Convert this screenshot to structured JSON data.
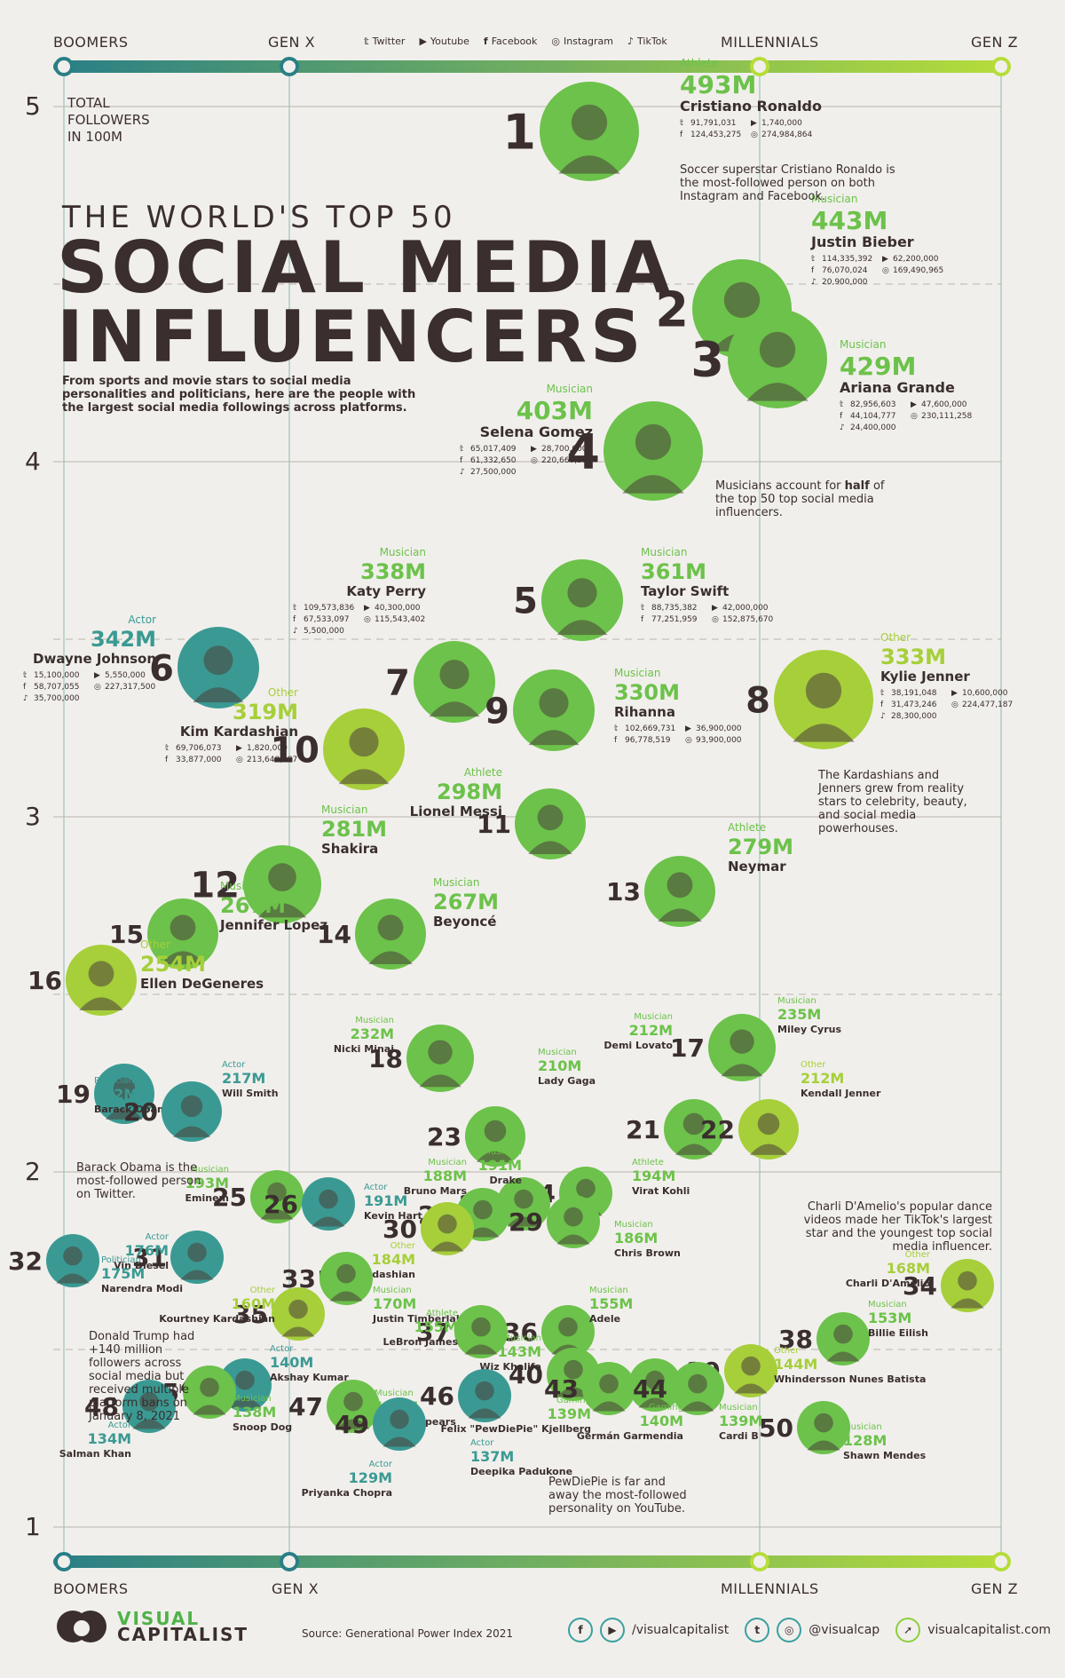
{
  "header": {
    "generations_top": [
      "BOOMERS",
      "GEN X",
      "MILLENNIALS",
      "GEN Z"
    ],
    "generations_bottom": [
      "BOOMERS",
      "GEN X",
      "MILLENNIALS",
      "GEN Z"
    ],
    "platform_legend": [
      {
        "icon": "twitter-icon",
        "label": "Twitter"
      },
      {
        "icon": "youtube-icon",
        "label": "Youtube"
      },
      {
        "icon": "facebook-icon",
        "label": "Facebook"
      },
      {
        "icon": "instagram-icon",
        "label": "Instagram"
      },
      {
        "icon": "tiktok-icon",
        "label": "TikTok"
      }
    ]
  },
  "title": {
    "line1": "THE WORLD'S TOP 50",
    "line2": "SOCIAL MEDIA",
    "line3": "INFLUENCERS",
    "subtitle": "From sports and movie stars to social media personalities and politicians, here are the people with the largest social media followings across platforms."
  },
  "axis": {
    "label_lines": [
      "TOTAL",
      "FOLLOWERS",
      "IN 100M"
    ],
    "ticks": [
      "5",
      "4",
      "3",
      "2",
      "1"
    ]
  },
  "notes": {
    "musicians_pre": "Musicians account for",
    "musicians_bold": "half",
    "musicians_post": "of the top 50 top social media influencers.",
    "kardashians": "The Kardashians and Jenners grew from reality stars to celebrity, beauty, and social media powerhouses.",
    "obama": "Barack Obama is the most-followed person on Twitter.",
    "charli": "Charli D'Amelio's popular dance videos made her TikTok's largest star and the youngest top social media influencer.",
    "trump": "Donald Trump had +140 million followers across social media but received multiple platform bans on January 8, 2021",
    "pewdiepie": "PewDiePie is far and away the most-followed personality on YouTube.",
    "ronaldo": "Soccer superstar Cristiano Ronaldo is the most-followed person on both Instagram and Facebook."
  },
  "colors": {
    "Athlete": "#6cc24a",
    "Musician": "#6cc24a",
    "Other": "#a6cf3a",
    "Actor": "#3a9a93",
    "Politician": "#3a9a93",
    "Gaming": "#6cc24a",
    "text": "#3a2e2e",
    "axis_gradient_start": "#2a7f86",
    "axis_gradient_end": "#b6dd3a"
  },
  "chart_data": {
    "type": "scatter",
    "ylabel": "TOTAL FOLLOWERS IN 100M",
    "ylim": [
      1,
      5
    ],
    "xlim": [
      "BOOMERS",
      "GEN Z"
    ],
    "yticks": [
      5,
      4,
      3,
      2,
      1
    ],
    "influencers": [
      {
        "rank": 1,
        "name": "Cristiano Ronaldo",
        "total": "493M",
        "value": 4.93,
        "category": "Athlete",
        "twitter": "91,791,031",
        "youtube": "1,740,000",
        "facebook": "124,453,275",
        "instagram": "274,984,864"
      },
      {
        "rank": 2,
        "name": "Justin Bieber",
        "total": "443M",
        "value": 4.43,
        "category": "Musician",
        "twitter": "114,335,392",
        "youtube": "62,200,000",
        "facebook": "76,070,024",
        "instagram": "169,490,965",
        "tiktok": "20,900,000"
      },
      {
        "rank": 3,
        "name": "Ariana Grande",
        "total": "429M",
        "value": 4.29,
        "category": "Musician",
        "twitter": "82,956,603",
        "youtube": "47,600,000",
        "facebook": "44,104,777",
        "instagram": "230,111,258",
        "tiktok": "24,400,000"
      },
      {
        "rank": 4,
        "name": "Selena Gomez",
        "total": "403M",
        "value": 4.03,
        "category": "Musician",
        "twitter": "65,017,409",
        "youtube": "28,700,000",
        "facebook": "61,332,650",
        "instagram": "220,660,577",
        "tiktok": "27,500,000"
      },
      {
        "rank": 5,
        "name": "Taylor Swift",
        "total": "361M",
        "value": 3.61,
        "category": "Musician",
        "twitter": "88,735,382",
        "youtube": "42,000,000",
        "facebook": "77,251,959",
        "instagram": "152,875,670"
      },
      {
        "rank": 6,
        "name": "Dwayne Johnson",
        "total": "342M",
        "value": 3.42,
        "category": "Actor",
        "twitter": "15,100,000",
        "youtube": "5,550,000",
        "facebook": "58,707,055",
        "instagram": "227,317,500",
        "tiktok": "35,700,000"
      },
      {
        "rank": 7,
        "name": "Katy Perry",
        "total": "338M",
        "value": 3.38,
        "category": "Musician",
        "twitter": "109,573,836",
        "youtube": "40,300,000",
        "facebook": "67,533,097",
        "instagram": "115,543,402",
        "tiktok": "5,500,000"
      },
      {
        "rank": 8,
        "name": "Kylie Jenner",
        "total": "333M",
        "value": 3.33,
        "category": "Other",
        "twitter": "38,191,048",
        "youtube": "10,600,000",
        "facebook": "31,473,246",
        "instagram": "224,477,187",
        "tiktok": "28,300,000"
      },
      {
        "rank": 9,
        "name": "Rihanna",
        "total": "330M",
        "value": 3.3,
        "category": "Musician",
        "twitter": "102,669,731",
        "youtube": "36,900,000",
        "facebook": "96,778,519",
        "instagram": "93,900,000"
      },
      {
        "rank": 10,
        "name": "Kim Kardashian",
        "total": "319M",
        "value": 3.19,
        "category": "Other",
        "twitter": "69,706,073",
        "youtube": "1,820,000",
        "facebook": "33,877,000",
        "instagram": "213,640,987"
      },
      {
        "rank": 11,
        "name": "Lionel Messi",
        "total": "298M",
        "value": 2.98,
        "category": "Athlete"
      },
      {
        "rank": 12,
        "name": "Shakira",
        "total": "281M",
        "value": 2.81,
        "category": "Musician"
      },
      {
        "rank": 13,
        "name": "Neymar",
        "total": "279M",
        "value": 2.79,
        "category": "Athlete"
      },
      {
        "rank": 14,
        "name": "Beyoncé",
        "total": "267M",
        "value": 2.67,
        "category": "Musician"
      },
      {
        "rank": 15,
        "name": "Jennifer Lopez",
        "total": "267M",
        "value": 2.67,
        "category": "Musician"
      },
      {
        "rank": 16,
        "name": "Ellen DeGeneres",
        "total": "254M",
        "value": 2.54,
        "category": "Other"
      },
      {
        "rank": 17,
        "name": "Miley Cyrus",
        "total": "235M",
        "value": 2.35,
        "category": "Musician"
      },
      {
        "rank": 18,
        "name": "Nicki Minaj",
        "total": "232M",
        "value": 2.32,
        "category": "Musician"
      },
      {
        "rank": 19,
        "name": "Barack Obama",
        "total": "222M",
        "value": 2.22,
        "category": "Politician"
      },
      {
        "rank": 20,
        "name": "Will Smith",
        "total": "217M",
        "value": 2.17,
        "category": "Actor"
      },
      {
        "rank": 21,
        "name": "Demi Lovato",
        "total": "212M",
        "value": 2.12,
        "category": "Musician"
      },
      {
        "rank": 22,
        "name": "Kendall Jenner",
        "total": "212M",
        "value": 2.12,
        "category": "Other"
      },
      {
        "rank": 23,
        "name": "Lady Gaga",
        "total": "210M",
        "value": 2.1,
        "category": "Musician"
      },
      {
        "rank": 24,
        "name": "Virat Kohli",
        "total": "194M",
        "value": 1.94,
        "category": "Athlete"
      },
      {
        "rank": 25,
        "name": "Eminem",
        "total": "193M",
        "value": 1.93,
        "category": "Musician"
      },
      {
        "rank": 26,
        "name": "Kevin Hart",
        "total": "191M",
        "value": 1.91,
        "category": "Actor"
      },
      {
        "rank": 27,
        "name": "Drake",
        "total": "191M",
        "value": 1.91,
        "category": "Musician"
      },
      {
        "rank": 28,
        "name": "Bruno Mars",
        "total": "188M",
        "value": 1.88,
        "category": "Musician"
      },
      {
        "rank": 29,
        "name": "Chris Brown",
        "total": "186M",
        "value": 1.86,
        "category": "Musician"
      },
      {
        "rank": 30,
        "name": "Khloe Kardashian",
        "total": "184M",
        "value": 1.84,
        "category": "Other"
      },
      {
        "rank": 31,
        "name": "Vin Diesel",
        "total": "176M",
        "value": 1.76,
        "category": "Actor"
      },
      {
        "rank": 32,
        "name": "Narendra Modi",
        "total": "175M",
        "value": 1.75,
        "category": "Politician"
      },
      {
        "rank": 33,
        "name": "Justin Timberlake",
        "total": "170M",
        "value": 1.7,
        "category": "Musician"
      },
      {
        "rank": 34,
        "name": "Charli D'Amelio",
        "total": "168M",
        "value": 1.68,
        "category": "Other"
      },
      {
        "rank": 35,
        "name": "Kourtney Kardashian",
        "total": "160M",
        "value": 1.6,
        "category": "Other"
      },
      {
        "rank": 36,
        "name": "Adele",
        "total": "155M",
        "value": 1.55,
        "category": "Musician"
      },
      {
        "rank": 37,
        "name": "LeBron James",
        "total": "155M",
        "value": 1.55,
        "category": "Athlete"
      },
      {
        "rank": 38,
        "name": "Billie Eilish",
        "total": "153M",
        "value": 1.53,
        "category": "Musician"
      },
      {
        "rank": 39,
        "name": "Whindersson Nunes Batista",
        "total": "144M",
        "value": 1.44,
        "category": "Other"
      },
      {
        "rank": 40,
        "name": "Wiz Khalifa",
        "total": "143M",
        "value": 1.43,
        "category": "Musician"
      },
      {
        "rank": 41,
        "name": "Akshay Kumar",
        "total": "140M",
        "value": 1.4,
        "category": "Actor"
      },
      {
        "rank": 42,
        "name": "Germán Garmendia",
        "total": "140M",
        "value": 1.4,
        "category": "Gaming"
      },
      {
        "rank": 43,
        "name": "Felix \"PewDiePie\" Kjellberg",
        "total": "139M",
        "value": 1.39,
        "category": "Gaming"
      },
      {
        "rank": 44,
        "name": "Cardi B",
        "total": "139M",
        "value": 1.39,
        "category": "Musician"
      },
      {
        "rank": 45,
        "name": "Snoop Dog",
        "total": "138M",
        "value": 1.38,
        "category": "Musician"
      },
      {
        "rank": 46,
        "name": "Deepika Padukone",
        "total": "137M",
        "value": 1.37,
        "category": "Actor"
      },
      {
        "rank": 47,
        "name": "Britney Spears",
        "total": "134M",
        "value": 1.34,
        "category": "Musician"
      },
      {
        "rank": 48,
        "name": "Salman Khan",
        "total": "134M",
        "value": 1.34,
        "category": "Actor"
      },
      {
        "rank": 49,
        "name": "Priyanka Chopra",
        "total": "129M",
        "value": 1.29,
        "category": "Actor"
      },
      {
        "rank": 50,
        "name": "Shawn Mendes",
        "total": "128M",
        "value": 1.28,
        "category": "Musician"
      }
    ]
  },
  "footer": {
    "brand_line1": "VISUAL",
    "brand_line2": "CAPITALIST",
    "source": "Source: Generational Power Index 2021",
    "social_handle_1": "/visualcapitalist",
    "social_handle_2": "@visualcap",
    "website": "visualcapitalist.com"
  }
}
